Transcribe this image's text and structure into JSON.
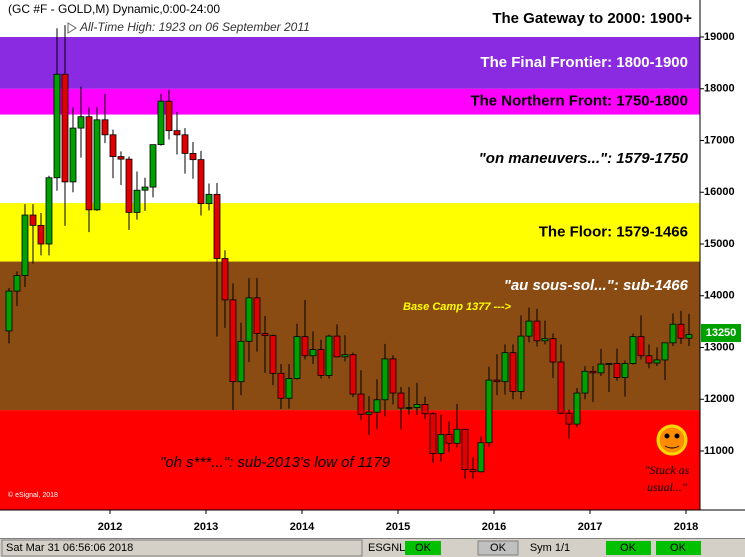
{
  "chart_data": {
    "type": "candlestick",
    "title": "(GC #F - GOLD,M) Dynamic,0:00-24:00",
    "subtitle": "All-Time High:  1923 on 06 September 2011",
    "categories": [
      null,
      null,
      null,
      null,
      null,
      null,
      null,
      null,
      null,
      null,
      null,
      "2012",
      null,
      null,
      null,
      null,
      null,
      null,
      null,
      null,
      null,
      null,
      null,
      "2013",
      null,
      null,
      null,
      null,
      null,
      null,
      null,
      null,
      null,
      null,
      null,
      "2014",
      null,
      null,
      null,
      null,
      null,
      null,
      null,
      null,
      null,
      null,
      null,
      "2015",
      null,
      null,
      null,
      null,
      null,
      null,
      null,
      null,
      null,
      null,
      null,
      "2016",
      null,
      null,
      null,
      null,
      null,
      null,
      null,
      null,
      null,
      null,
      null,
      "2017",
      null,
      null,
      null,
      null,
      null,
      null,
      null,
      null,
      null,
      null,
      null,
      "2018",
      null,
      null
    ],
    "open": [
      13320,
      14090,
      14390,
      15560,
      15360,
      15000,
      16280,
      18280,
      16200,
      17240,
      17460,
      15660,
      17400,
      17110,
      16690,
      16640,
      15610,
      16040,
      16100,
      16920,
      17760,
      17190,
      17110,
      16750,
      16630,
      15780,
      15960,
      14720,
      13920,
      12340,
      13120,
      13960,
      13270,
      13230,
      12500,
      12020,
      12400,
      13210,
      12840,
      12960,
      12460,
      13220,
      12820,
      12860,
      12100,
      11710,
      11750,
      11990,
      12780,
      12120,
      11830,
      11840,
      11900,
      11720,
      10950,
      11320,
      11150,
      11420,
      10640,
      10600,
      11160,
      12370,
      12340,
      12900,
      12150,
      13220,
      13510,
      13130,
      13170,
      12720,
      11730,
      11520,
      12120,
      12540,
      12510,
      12680,
      12690,
      12420,
      12690,
      13210,
      12840,
      12700,
      12760,
      13090,
      13450,
      13180
    ],
    "high": [
      14150,
      14470,
      15770,
      15770,
      15600,
      16320,
      19170,
      19230,
      17640,
      18040,
      17640,
      17640,
      17900,
      17210,
      16790,
      16690,
      16400,
      16280,
      16920,
      17900,
      17980,
      17550,
      17240,
      16970,
      16800,
      16170,
      16180,
      14880,
      14240,
      13480,
      14340,
      14340,
      13610,
      13250,
      12680,
      12680,
      13460,
      13920,
      13310,
      13150,
      13250,
      13450,
      13240,
      12900,
      12560,
      12060,
      12390,
      13070,
      12850,
      12240,
      12240,
      12320,
      12050,
      11750,
      11700,
      11570,
      11910,
      11430,
      10880,
      11280,
      12630,
      12870,
      13060,
      13060,
      13620,
      13770,
      13750,
      13520,
      13270,
      13060,
      11800,
      12220,
      12640,
      12640,
      12970,
      12700,
      12980,
      12750,
      13270,
      13620,
      13060,
      13000,
      13090,
      13660,
      13710,
      13650
    ],
    "low": [
      13080,
      13800,
      14170,
      14620,
      14780,
      14780,
      16030,
      15350,
      16000,
      16670,
      15230,
      15640,
      16950,
      16270,
      16140,
      15270,
      15470,
      15640,
      15900,
      16900,
      17020,
      16730,
      16360,
      16260,
      15550,
      15650,
      13210,
      13380,
      11790,
      12080,
      12720,
      12920,
      12510,
      12270,
      11810,
      11820,
      12380,
      12770,
      12680,
      12400,
      12400,
      12810,
      12730,
      12040,
      11600,
      11310,
      11420,
      11670,
      11900,
      11420,
      11700,
      11700,
      11620,
      10770,
      10800,
      10980,
      11070,
      10460,
      10460,
      10580,
      11080,
      12080,
      12090,
      12000,
      12000,
      13100,
      13020,
      13060,
      12410,
      11710,
      11240,
      11460,
      12000,
      11950,
      12450,
      12140,
      12360,
      12050,
      12670,
      12770,
      12600,
      12640,
      12370,
      13030,
      13070,
      13030
    ],
    "close": [
      14090,
      14390,
      15560,
      15360,
      15000,
      16280,
      18280,
      16200,
      17240,
      17460,
      15660,
      17400,
      17110,
      16690,
      16640,
      15610,
      16040,
      16100,
      16920,
      17760,
      17190,
      17110,
      16750,
      16630,
      15780,
      15960,
      14720,
      13920,
      12340,
      13120,
      13960,
      13270,
      13230,
      12500,
      12020,
      12400,
      13210,
      12840,
      12960,
      12460,
      13220,
      12820,
      12860,
      12100,
      11710,
      11750,
      11990,
      12780,
      12120,
      11830,
      11840,
      11900,
      11720,
      10950,
      11320,
      11150,
      11420,
      10640,
      10600,
      11160,
      12370,
      12340,
      12900,
      12150,
      13220,
      13510,
      13130,
      13170,
      12720,
      11730,
      11520,
      12120,
      12540,
      12510,
      12680,
      12690,
      12420,
      12690,
      13210,
      12840,
      12700,
      12760,
      13090,
      13450,
      13180,
      13250
    ],
    "up_color": "#00a000",
    "down_color": "#e00000",
    "ylim": [
      9860,
      19715
    ],
    "yticks": [
      11000,
      12000,
      13000,
      14000,
      15000,
      16000,
      17000,
      18000,
      19000
    ],
    "bands": [
      {
        "label": "The Gateway to 2000:  1900+",
        "from": 19000,
        "color": "#ffffff",
        "text_color": "#000000"
      },
      {
        "label": "The Final Frontier:  1800-1900",
        "from": 18000,
        "to": 19000,
        "color": "#8a2be2",
        "text_color": "#ffffff"
      },
      {
        "label": "The Northern Front:  1750-1800",
        "from": 17500,
        "to": 18000,
        "color": "#ff00ff",
        "text_color": "#000000"
      },
      {
        "label": "\"on maneuvers...\":  1579-1750",
        "from": 15790,
        "to": 17500,
        "color": "#ffffff",
        "text_color": "#000000",
        "italic": true
      },
      {
        "label": "The Floor:  1579-1466",
        "from": 14660,
        "to": 15790,
        "color": "#ffff00",
        "text_color": "#000000"
      },
      {
        "label": "\"au sous-sol...\":  sub-1466",
        "from": 11790,
        "to": 14660,
        "color": "#8b4c14",
        "text_color": "#ffffff",
        "italic": true
      },
      {
        "label": "\"oh s***...\":  sub-2013's low of 1179",
        "to": 11790,
        "color": "#ff0000",
        "text_color": "#000000",
        "italic": true
      }
    ],
    "annotations": {
      "base_camp": "Base Camp 1377 --->",
      "stuck": [
        "\"Stuck as",
        "usual...\""
      ],
      "copyright": "© eSignal, 2018"
    }
  },
  "status_bar": {
    "datetime": "Sat Mar 31 06:56:06 2018",
    "feed": "ESGNL:",
    "feed_status": "OK",
    "status_2": "OK",
    "symbol": "Sym 1/1",
    "status_3": "OK",
    "status_4": "OK"
  }
}
